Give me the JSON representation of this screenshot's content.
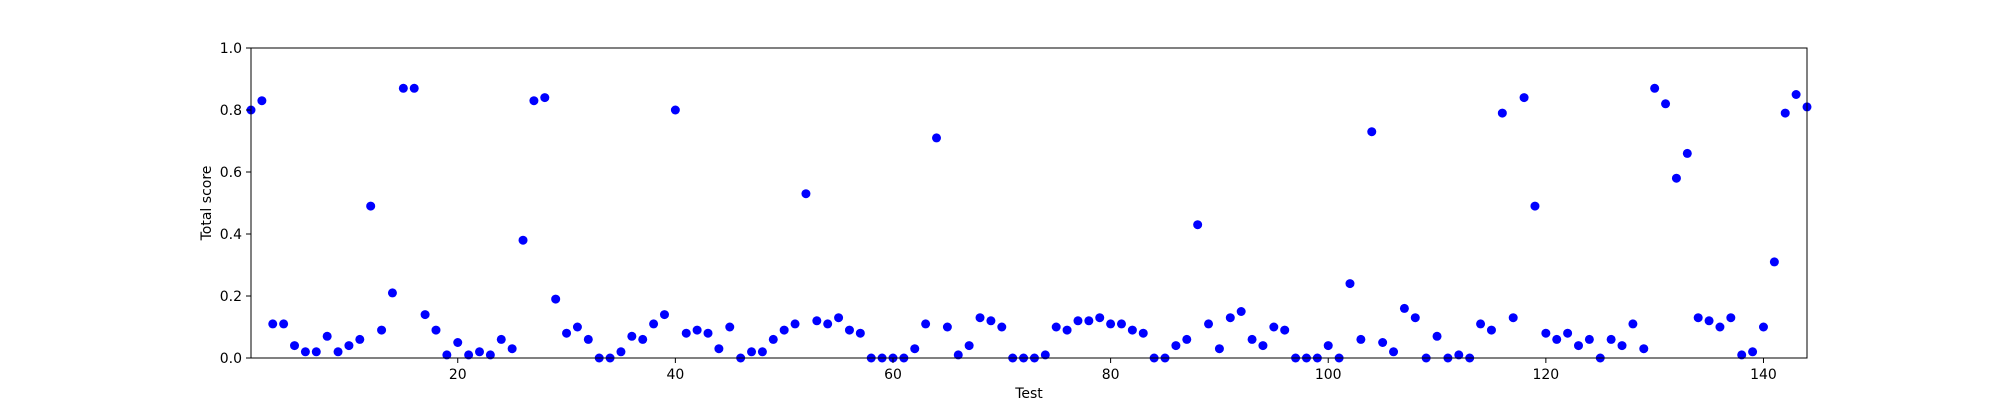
{
  "chart_data": {
    "type": "scatter",
    "title": "",
    "xlabel": "Test",
    "ylabel": "Total score",
    "xlim": [
      1,
      144
    ],
    "ylim": [
      0,
      1.0
    ],
    "x_ticks": [
      20,
      40,
      60,
      80,
      100,
      120,
      140
    ],
    "x_tick_labels": [
      "20",
      "40",
      "60",
      "80",
      "100",
      "120",
      "140"
    ],
    "y_ticks": [
      0.0,
      0.2,
      0.4,
      0.6,
      0.8,
      1.0
    ],
    "y_tick_labels": [
      "0.0",
      "0.2",
      "0.4",
      "0.6",
      "0.8",
      "1.0"
    ],
    "grid": false,
    "legend": "none",
    "marker_color": "#0000ff",
    "series": [
      {
        "x": [
          1,
          2,
          3,
          4,
          5,
          6,
          7,
          8,
          9,
          10,
          11,
          12,
          13,
          14,
          15,
          16,
          17,
          18,
          19,
          20,
          21,
          22,
          23,
          24,
          25,
          26,
          27,
          28,
          29,
          30,
          31,
          32,
          33,
          34,
          35,
          36,
          37,
          38,
          39,
          40,
          41,
          42,
          43,
          44,
          45,
          46,
          47,
          48,
          49,
          50,
          51,
          52,
          53,
          54,
          55,
          56,
          57,
          58,
          59,
          60,
          61,
          62,
          63,
          64,
          65,
          66,
          67,
          68,
          69,
          70,
          71,
          72,
          73,
          74,
          75,
          76,
          77,
          78,
          79,
          80,
          81,
          82,
          83,
          84,
          85,
          86,
          87,
          88,
          89,
          90,
          91,
          92,
          93,
          94,
          95,
          96,
          97,
          98,
          99,
          100,
          101,
          102,
          103,
          104,
          105,
          106,
          107,
          108,
          109,
          110,
          111,
          112,
          113,
          114,
          115,
          116,
          117,
          118,
          119,
          120,
          121,
          122,
          123,
          124,
          125,
          126,
          127,
          128,
          129,
          130,
          131,
          132,
          133,
          134,
          135,
          136,
          137,
          138,
          139,
          140,
          141,
          142,
          143,
          144
        ],
        "y": [
          0.8,
          0.83,
          0.11,
          0.11,
          0.04,
          0.02,
          0.02,
          0.07,
          0.02,
          0.04,
          0.06,
          0.49,
          0.09,
          0.21,
          0.87,
          0.87,
          0.14,
          0.09,
          0.01,
          0.05,
          0.01,
          0.02,
          0.01,
          0.06,
          0.03,
          0.38,
          0.83,
          0.84,
          0.19,
          0.08,
          0.1,
          0.06,
          0.0,
          0.0,
          0.02,
          0.07,
          0.06,
          0.11,
          0.14,
          0.8,
          0.08,
          0.09,
          0.08,
          0.03,
          0.1,
          0.0,
          0.02,
          0.02,
          0.06,
          0.09,
          0.11,
          0.53,
          0.12,
          0.11,
          0.13,
          0.09,
          0.08,
          0.0,
          0.0,
          0.0,
          0.0,
          0.03,
          0.11,
          0.71,
          0.1,
          0.01,
          0.04,
          0.13,
          0.12,
          0.1,
          0.0,
          0.0,
          0.0,
          0.01,
          0.1,
          0.09,
          0.12,
          0.12,
          0.13,
          0.11,
          0.11,
          0.09,
          0.08,
          0.0,
          0.0,
          0.04,
          0.06,
          0.43,
          0.11,
          0.03,
          0.13,
          0.15,
          0.06,
          0.04,
          0.1,
          0.09,
          0.0,
          0.0,
          0.0,
          0.04,
          0.0,
          0.24,
          0.06,
          0.73,
          0.05,
          0.02,
          0.16,
          0.13,
          0.0,
          0.07,
          0.0,
          0.01,
          0.0,
          0.11,
          0.09,
          0.79,
          0.13,
          0.84,
          0.49,
          0.08,
          0.06,
          0.08,
          0.04,
          0.06,
          0.0,
          0.06,
          0.04,
          0.11,
          0.03,
          0.87,
          0.82,
          0.58,
          0.66,
          0.13,
          0.12,
          0.1,
          0.13,
          0.01,
          0.02,
          0.1,
          0.31,
          0.79,
          0.85,
          0.81
        ]
      }
    ]
  }
}
